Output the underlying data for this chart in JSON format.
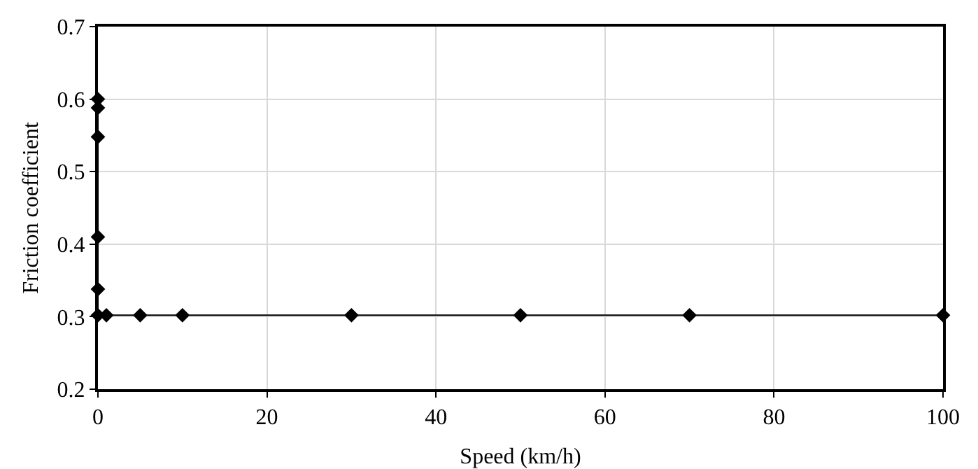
{
  "chart_data": {
    "type": "line",
    "xlabel": "Speed (km/h)",
    "ylabel": "Friction coefficient",
    "x": [
      0,
      0,
      0,
      0,
      0,
      0,
      1,
      5,
      10,
      30,
      50,
      70,
      100
    ],
    "series": [
      {
        "color": "#000000",
        "values": [
          0.6,
          0.588,
          0.548,
          0.41,
          0.338,
          0.302,
          0.302,
          0.302,
          0.302,
          0.302,
          0.302,
          0.302,
          0.302
        ]
      }
    ],
    "xlim": [
      0,
      100
    ],
    "xticks": [
      0,
      20,
      40,
      60,
      80,
      100
    ],
    "ylim": [
      0.2,
      0.7
    ],
    "yticks": [
      0.2,
      0.3,
      0.4,
      0.5,
      0.6,
      0.7
    ],
    "grid": true,
    "marker": "diamond",
    "line_style": "solid",
    "legend": false
  }
}
